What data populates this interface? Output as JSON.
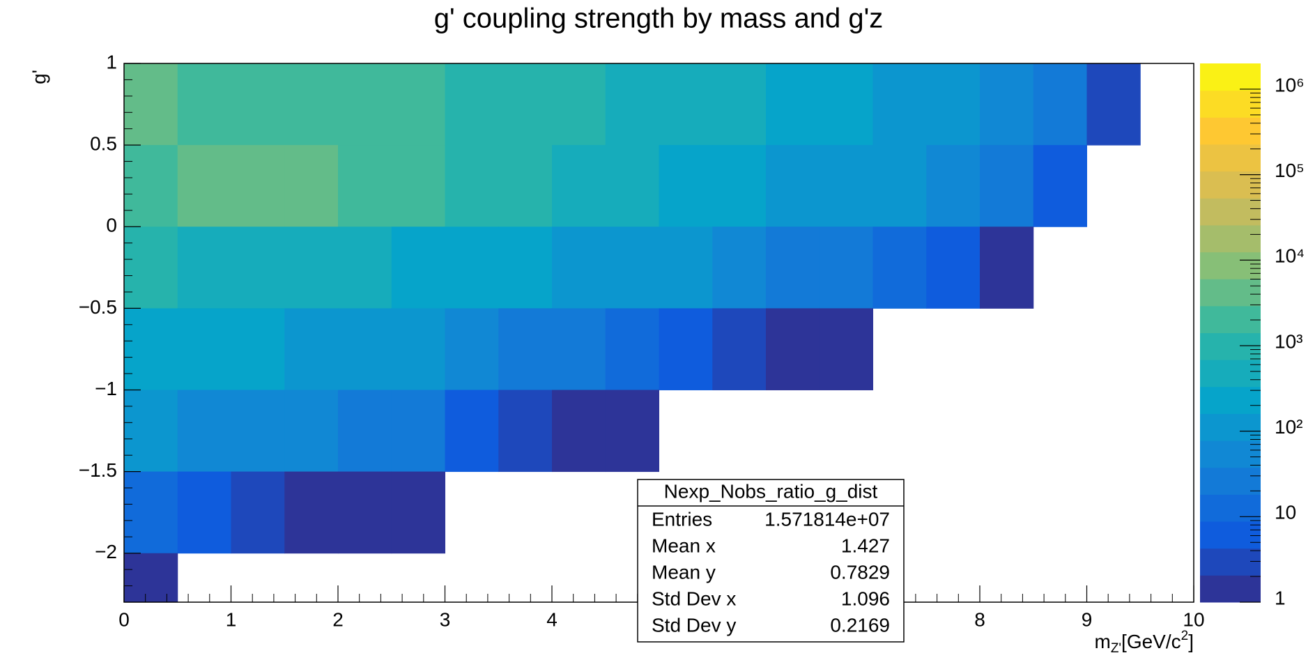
{
  "chart_data": {
    "type": "heatmap",
    "title": "g' coupling strength by mass and g'z",
    "y_label": "g'",
    "x_label": {
      "base": "m",
      "sub": "Z'",
      "rest": "[GeV/c",
      "sup": "2",
      "end": "]"
    },
    "x_edges": [
      0,
      0.5,
      1,
      1.5,
      2,
      2.5,
      3,
      3.5,
      4,
      4.5,
      5,
      5.5,
      6,
      6.5,
      7,
      7.5,
      8,
      8.5,
      9,
      9.5,
      10
    ],
    "y_edges": [
      1,
      0.5,
      0,
      -0.5,
      -1,
      -1.5,
      -2,
      -2.3
    ],
    "z": [
      [
        3000,
        2000,
        2000,
        2000,
        2000,
        2000,
        1000,
        1000,
        800,
        600,
        500,
        400,
        300,
        200,
        150,
        100,
        60,
        30,
        3,
        null
      ],
      [
        2000,
        3000,
        3000,
        3000,
        2000,
        2000,
        1000,
        800,
        500,
        400,
        300,
        200,
        150,
        100,
        80,
        50,
        20,
        5,
        null,
        null
      ],
      [
        1000,
        500,
        500,
        500,
        400,
        300,
        300,
        200,
        150,
        100,
        80,
        50,
        30,
        20,
        10,
        5,
        2,
        null,
        null,
        null
      ],
      [
        300,
        200,
        200,
        150,
        100,
        100,
        50,
        30,
        20,
        10,
        5,
        3,
        2,
        1,
        null,
        null,
        null,
        null,
        null,
        null
      ],
      [
        100,
        50,
        50,
        40,
        20,
        20,
        5,
        3,
        2,
        1,
        null,
        null,
        null,
        null,
        null,
        null,
        null,
        null,
        null,
        null
      ],
      [
        10,
        5,
        3,
        2,
        2,
        1,
        null,
        null,
        null,
        null,
        null,
        null,
        null,
        null,
        null,
        null,
        null,
        null,
        null,
        null
      ],
      [
        2,
        null,
        null,
        null,
        null,
        null,
        null,
        null,
        null,
        null,
        null,
        null,
        null,
        null,
        null,
        null,
        null,
        null,
        null,
        null
      ]
    ],
    "xlim": [
      0,
      10
    ],
    "xticks": [
      0,
      1,
      2,
      3,
      4,
      5,
      6,
      7,
      8,
      9,
      10
    ],
    "ylim": [
      -2.3,
      1
    ],
    "yticks": [
      {
        "value": -2,
        "label": "−2"
      },
      {
        "value": -1.5,
        "label": "−1.5"
      },
      {
        "value": -1,
        "label": "−1"
      },
      {
        "value": -0.5,
        "label": "−0.5"
      },
      0,
      0.5,
      1
    ],
    "zlim": [
      1,
      2000000
    ],
    "zlog": true,
    "zticks": [
      1,
      10,
      {
        "value": 100,
        "label": "10²"
      },
      {
        "value": 1000,
        "label": "10³"
      },
      {
        "value": 10000,
        "label": "10⁴"
      },
      {
        "value": 100000,
        "label": "10⁵"
      },
      {
        "value": 1000000,
        "label": "10⁶"
      }
    ],
    "palette": [
      "#352a87",
      "#0f5cdd",
      "#1481d6",
      "#06a4ca",
      "#2eb7a4",
      "#87bf77",
      "#d1bb59",
      "#fec832",
      "#f9fb0e"
    ],
    "stats": {
      "name": "Nexp_Nobs_ratio_g_dist",
      "rows": [
        [
          "Entries",
          "1.571814e+07"
        ],
        [
          "Mean x",
          "1.427"
        ],
        [
          "Mean y",
          "0.7829"
        ],
        [
          "Std Dev x",
          "1.096"
        ],
        [
          "Std Dev y",
          "0.2169"
        ]
      ]
    }
  }
}
